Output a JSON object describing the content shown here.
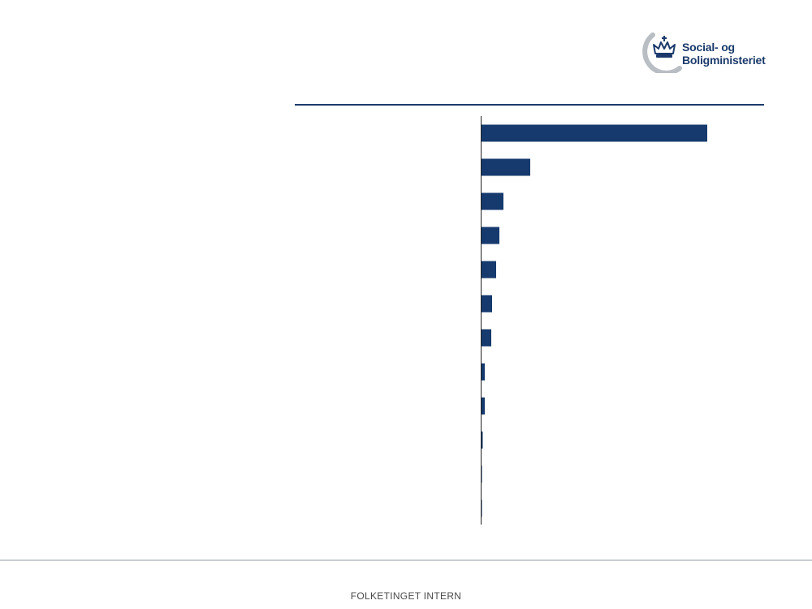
{
  "logo": {
    "line1": "Social- og",
    "line2": "Boligministeriet",
    "brand_color": "#1b3a6b",
    "arc_color": "#b9bec4"
  },
  "footer": {
    "label": "FOLKETINGET INTERN"
  },
  "chart_data": {
    "type": "bar",
    "orientation": "horizontal",
    "categories": [
      "",
      "",
      "",
      "",
      "",
      "",
      "",
      "",
      "",
      "",
      "",
      ""
    ],
    "values": [
      278,
      60,
      27,
      22,
      18,
      13,
      12,
      4,
      4,
      1.5,
      0.3,
      0.2
    ],
    "xlim": [
      0,
      350
    ],
    "grid": false,
    "legend": "none",
    "bar_color": "#163a6e"
  }
}
